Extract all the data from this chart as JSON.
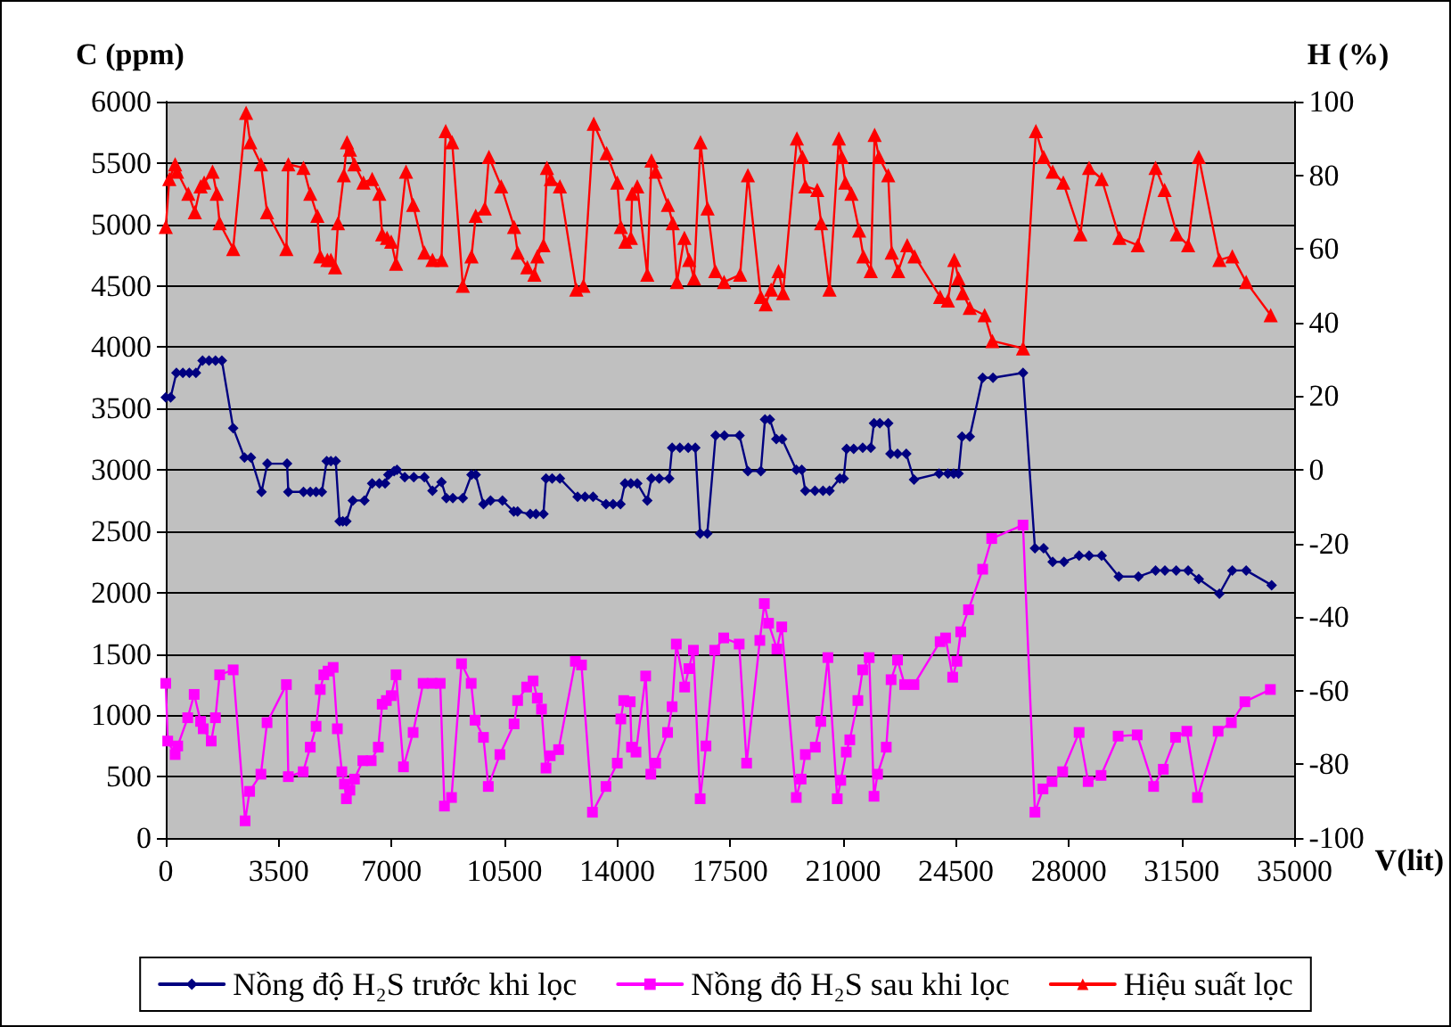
{
  "chart_data": {
    "type": "line",
    "xlabel": "V(lit)",
    "ylabel": "C (ppm)",
    "y2label": "H (%)",
    "xlim": [
      0,
      35000
    ],
    "xticks": [
      0,
      3500,
      7000,
      10500,
      14000,
      17500,
      21000,
      24500,
      28000,
      31500,
      35000
    ],
    "ylim": [
      0,
      6000
    ],
    "yticks": [
      0,
      500,
      1000,
      1500,
      2000,
      2500,
      3000,
      3500,
      4000,
      4500,
      5000,
      5500,
      6000
    ],
    "y2lim": [
      -100,
      100
    ],
    "y2ticks": [
      -100,
      -80,
      -60,
      -40,
      -20,
      0,
      20,
      40,
      60,
      80,
      100
    ],
    "grid": "y",
    "legend": "bottom",
    "line_style": "solid",
    "series": [
      {
        "name": "Nồng độ H₂S trước khi lọc",
        "color": "#000080",
        "marker": "diamond",
        "x": [
          0,
          150,
          330,
          530,
          730,
          935,
          1140,
          1340,
          1540,
          1740,
          2090,
          2440,
          2640,
          2970,
          3150,
          3760,
          3800,
          4270,
          4480,
          4660,
          4840,
          4990,
          5120,
          5270,
          5390,
          5490,
          5600,
          5800,
          6160,
          6400,
          6620,
          6800,
          6900,
          7080,
          7170,
          7410,
          7690,
          8020,
          8270,
          8550,
          8700,
          8900,
          9210,
          9480,
          9610,
          9850,
          10070,
          10440,
          10790,
          10910,
          11300,
          11480,
          11710,
          11790,
          11980,
          12220,
          12770,
          13000,
          13250,
          13650,
          13870,
          14100,
          14240,
          14420,
          14620,
          14930,
          15060,
          15300,
          15610,
          15700,
          15940,
          16200,
          16420,
          16570,
          16790,
          17050,
          17320,
          17790,
          18050,
          18450,
          18580,
          18730,
          18930,
          19110,
          19550,
          19720,
          19830,
          20130,
          20380,
          20580,
          20900,
          21020,
          21110,
          21330,
          21610,
          21860,
          21960,
          22140,
          22400,
          22470,
          22690,
          22960,
          23200,
          23980,
          24250,
          24430,
          24580,
          24690,
          24930,
          25330,
          25650,
          26580,
          26950,
          27220,
          27500,
          27850,
          28320,
          28630,
          29020,
          29550,
          30160,
          30690,
          30980,
          31330,
          31700,
          32030,
          32670,
          33070,
          33500,
          34290
        ],
        "values": [
          3590,
          3590,
          3790,
          3790,
          3790,
          3790,
          3890,
          3890,
          3890,
          3890,
          3340,
          3100,
          3100,
          2820,
          3050,
          3050,
          2820,
          2820,
          2820,
          2820,
          2820,
          3070,
          3070,
          3070,
          2580,
          2580,
          2580,
          2750,
          2750,
          2890,
          2890,
          2890,
          2960,
          2990,
          3000,
          2940,
          2940,
          2940,
          2830,
          2900,
          2770,
          2770,
          2770,
          2960,
          2960,
          2720,
          2750,
          2750,
          2660,
          2660,
          2640,
          2640,
          2640,
          2930,
          2930,
          2930,
          2780,
          2780,
          2780,
          2720,
          2720,
          2720,
          2890,
          2890,
          2890,
          2750,
          2930,
          2930,
          2930,
          3180,
          3180,
          3180,
          3180,
          2480,
          2480,
          3280,
          3280,
          3280,
          2990,
          2990,
          3410,
          3410,
          3250,
          3250,
          3000,
          3000,
          2830,
          2830,
          2830,
          2830,
          2930,
          2930,
          3170,
          3170,
          3180,
          3180,
          3380,
          3380,
          3380,
          3130,
          3130,
          3130,
          2920,
          2970,
          2970,
          2970,
          2970,
          3270,
          3270,
          3750,
          3750,
          3790,
          2360,
          2360,
          2250,
          2250,
          2300,
          2300,
          2300,
          2130,
          2130,
          2180,
          2180,
          2180,
          2180,
          2110,
          1990,
          2180,
          2180,
          2060
        ]
      },
      {
        "name": "Nồng độ H₂S sau khi lọc",
        "color": "#ff00ff",
        "marker": "square",
        "x": [
          0,
          60,
          290,
          370,
          680,
          880,
          1080,
          1160,
          1410,
          1540,
          1670,
          2090,
          2460,
          2600,
          2950,
          3140,
          3740,
          3800,
          4260,
          4480,
          4660,
          4790,
          4900,
          5030,
          5190,
          5320,
          5460,
          5540,
          5600,
          5710,
          5850,
          6110,
          6370,
          6590,
          6710,
          6840,
          6990,
          7140,
          7370,
          7670,
          7980,
          8260,
          8510,
          8640,
          8860,
          9170,
          9470,
          9590,
          9850,
          10000,
          10360,
          10800,
          10910,
          11190,
          11390,
          11520,
          11650,
          11790,
          11920,
          12180,
          12700,
          12890,
          13230,
          13650,
          14000,
          14110,
          14200,
          14400,
          14440,
          14580,
          14880,
          15040,
          15190,
          15560,
          15700,
          15830,
          16090,
          16220,
          16360,
          16570,
          16750,
          17020,
          17300,
          17780,
          18010,
          18420,
          18560,
          18690,
          18950,
          19100,
          19550,
          19700,
          19830,
          20140,
          20310,
          20530,
          20820,
          20930,
          21100,
          21210,
          21460,
          21610,
          21810,
          21960,
          22070,
          22340,
          22490,
          22690,
          22910,
          23200,
          24010,
          24180,
          24400,
          24530,
          24650,
          24890,
          25330,
          25610,
          26580,
          26950,
          27200,
          27480,
          27810,
          28320,
          28600,
          29000,
          29530,
          30120,
          30630,
          30930,
          31310,
          31660,
          31990,
          32630,
          33040,
          33460,
          34250
        ],
        "values": [
          1260,
          790,
          680,
          750,
          980,
          1170,
          950,
          890,
          790,
          980,
          1330,
          1370,
          140,
          380,
          520,
          940,
          1250,
          500,
          540,
          740,
          910,
          1210,
          1330,
          1360,
          1390,
          890,
          540,
          440,
          320,
          390,
          480,
          630,
          630,
          740,
          1090,
          1120,
          1160,
          1330,
          580,
          860,
          1260,
          1260,
          1260,
          260,
          330,
          1420,
          1260,
          960,
          820,
          420,
          680,
          930,
          1120,
          1230,
          1280,
          1140,
          1050,
          570,
          670,
          720,
          1440,
          1410,
          210,
          420,
          610,
          970,
          1120,
          1110,
          740,
          700,
          1320,
          520,
          610,
          860,
          1070,
          1580,
          1230,
          1380,
          1530,
          320,
          750,
          1530,
          1630,
          1580,
          610,
          1610,
          1910,
          1750,
          1540,
          1720,
          330,
          480,
          680,
          740,
          950,
          1470,
          320,
          470,
          700,
          800,
          1120,
          1370,
          1470,
          340,
          520,
          740,
          1290,
          1450,
          1250,
          1250,
          1600,
          1630,
          1310,
          1440,
          1680,
          1860,
          2190,
          2440,
          2550,
          210,
          400,
          460,
          540,
          860,
          460,
          510,
          830,
          840,
          420,
          560,
          820,
          870,
          330,
          870,
          940,
          1110,
          1210
        ]
      },
      {
        "name": "Hiệu suất lọc",
        "color": "#ff0000",
        "marker": "triangle",
        "axis": "y2",
        "x": [
          0,
          110,
          290,
          350,
          700,
          900,
          1080,
          1190,
          1450,
          1580,
          1670,
          2090,
          2490,
          2620,
          2950,
          3140,
          3740,
          3800,
          4270,
          4480,
          4700,
          4790,
          5010,
          5120,
          5250,
          5340,
          5520,
          5620,
          5710,
          5850,
          6130,
          6400,
          6620,
          6710,
          6860,
          6990,
          7140,
          7450,
          7670,
          8020,
          8270,
          8550,
          8680,
          8880,
          9210,
          9480,
          9610,
          9890,
          10020,
          10400,
          10800,
          10910,
          11210,
          11430,
          11520,
          11710,
          11820,
          11940,
          12220,
          12730,
          12950,
          13270,
          13670,
          14000,
          14110,
          14250,
          14420,
          14460,
          14620,
          14930,
          15060,
          15190,
          15570,
          15720,
          15850,
          16080,
          16230,
          16380,
          16580,
          16800,
          17040,
          17310,
          17810,
          18050,
          18450,
          18600,
          18770,
          19000,
          19140,
          19570,
          19740,
          19830,
          20200,
          20320,
          20580,
          20870,
          20960,
          21070,
          21260,
          21500,
          21630,
          21860,
          21980,
          22110,
          22400,
          22510,
          22710,
          22990,
          23220,
          24010,
          24250,
          24450,
          24580,
          24710,
          24930,
          25390,
          25630,
          26580,
          26980,
          27220,
          27500,
          27830,
          28360,
          28630,
          29020,
          29570,
          30140,
          30690,
          30970,
          31350,
          31700,
          32030,
          32670,
          33070,
          33500,
          34260
        ],
        "values": [
          66,
          79,
          83,
          81,
          75,
          70,
          77,
          78,
          81,
          75,
          67,
          60,
          97,
          89,
          83,
          70,
          60,
          83,
          82,
          75,
          69,
          58,
          57,
          57,
          55,
          67,
          80,
          89,
          87,
          83,
          78,
          79,
          75,
          64,
          63,
          62,
          56,
          81,
          72,
          59,
          57,
          57,
          92,
          89,
          50,
          58,
          69,
          71,
          85,
          77,
          66,
          59,
          55,
          53,
          58,
          61,
          82,
          79,
          77,
          49,
          50,
          94,
          86,
          78,
          66,
          62,
          63,
          75,
          77,
          53,
          84,
          81,
          72,
          67,
          51,
          63,
          57,
          52,
          89,
          71,
          54,
          51,
          53,
          80,
          47,
          45,
          49,
          54,
          48,
          90,
          85,
          77,
          76,
          67,
          49,
          90,
          85,
          78,
          75,
          65,
          58,
          54,
          91,
          85,
          80,
          59,
          54,
          61,
          58,
          47,
          46,
          57,
          52,
          48,
          44,
          42,
          35,
          33,
          92,
          85,
          81,
          78,
          64,
          82,
          79,
          63,
          61,
          82,
          76,
          64,
          61,
          85,
          57,
          58,
          51,
          42
        ]
      }
    ]
  }
}
